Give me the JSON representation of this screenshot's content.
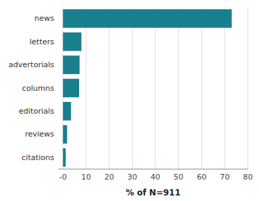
{
  "chart_data": {
    "type": "bar",
    "orientation": "horizontal",
    "categories": [
      "citations",
      "reviews",
      "editorials",
      "columns",
      "advertorials",
      "letters",
      "news"
    ],
    "values": [
      1.2,
      1.8,
      3.5,
      7.0,
      7.2,
      8.0,
      73.0
    ],
    "color": "#1a7f8e",
    "xlabel": "% of N=911",
    "xlim": [
      -2,
      80
    ],
    "xticks": [
      {
        "value": 0,
        "label": "-0"
      },
      10,
      20,
      30,
      40,
      50,
      60,
      70,
      80
    ],
    "grid": true
  }
}
